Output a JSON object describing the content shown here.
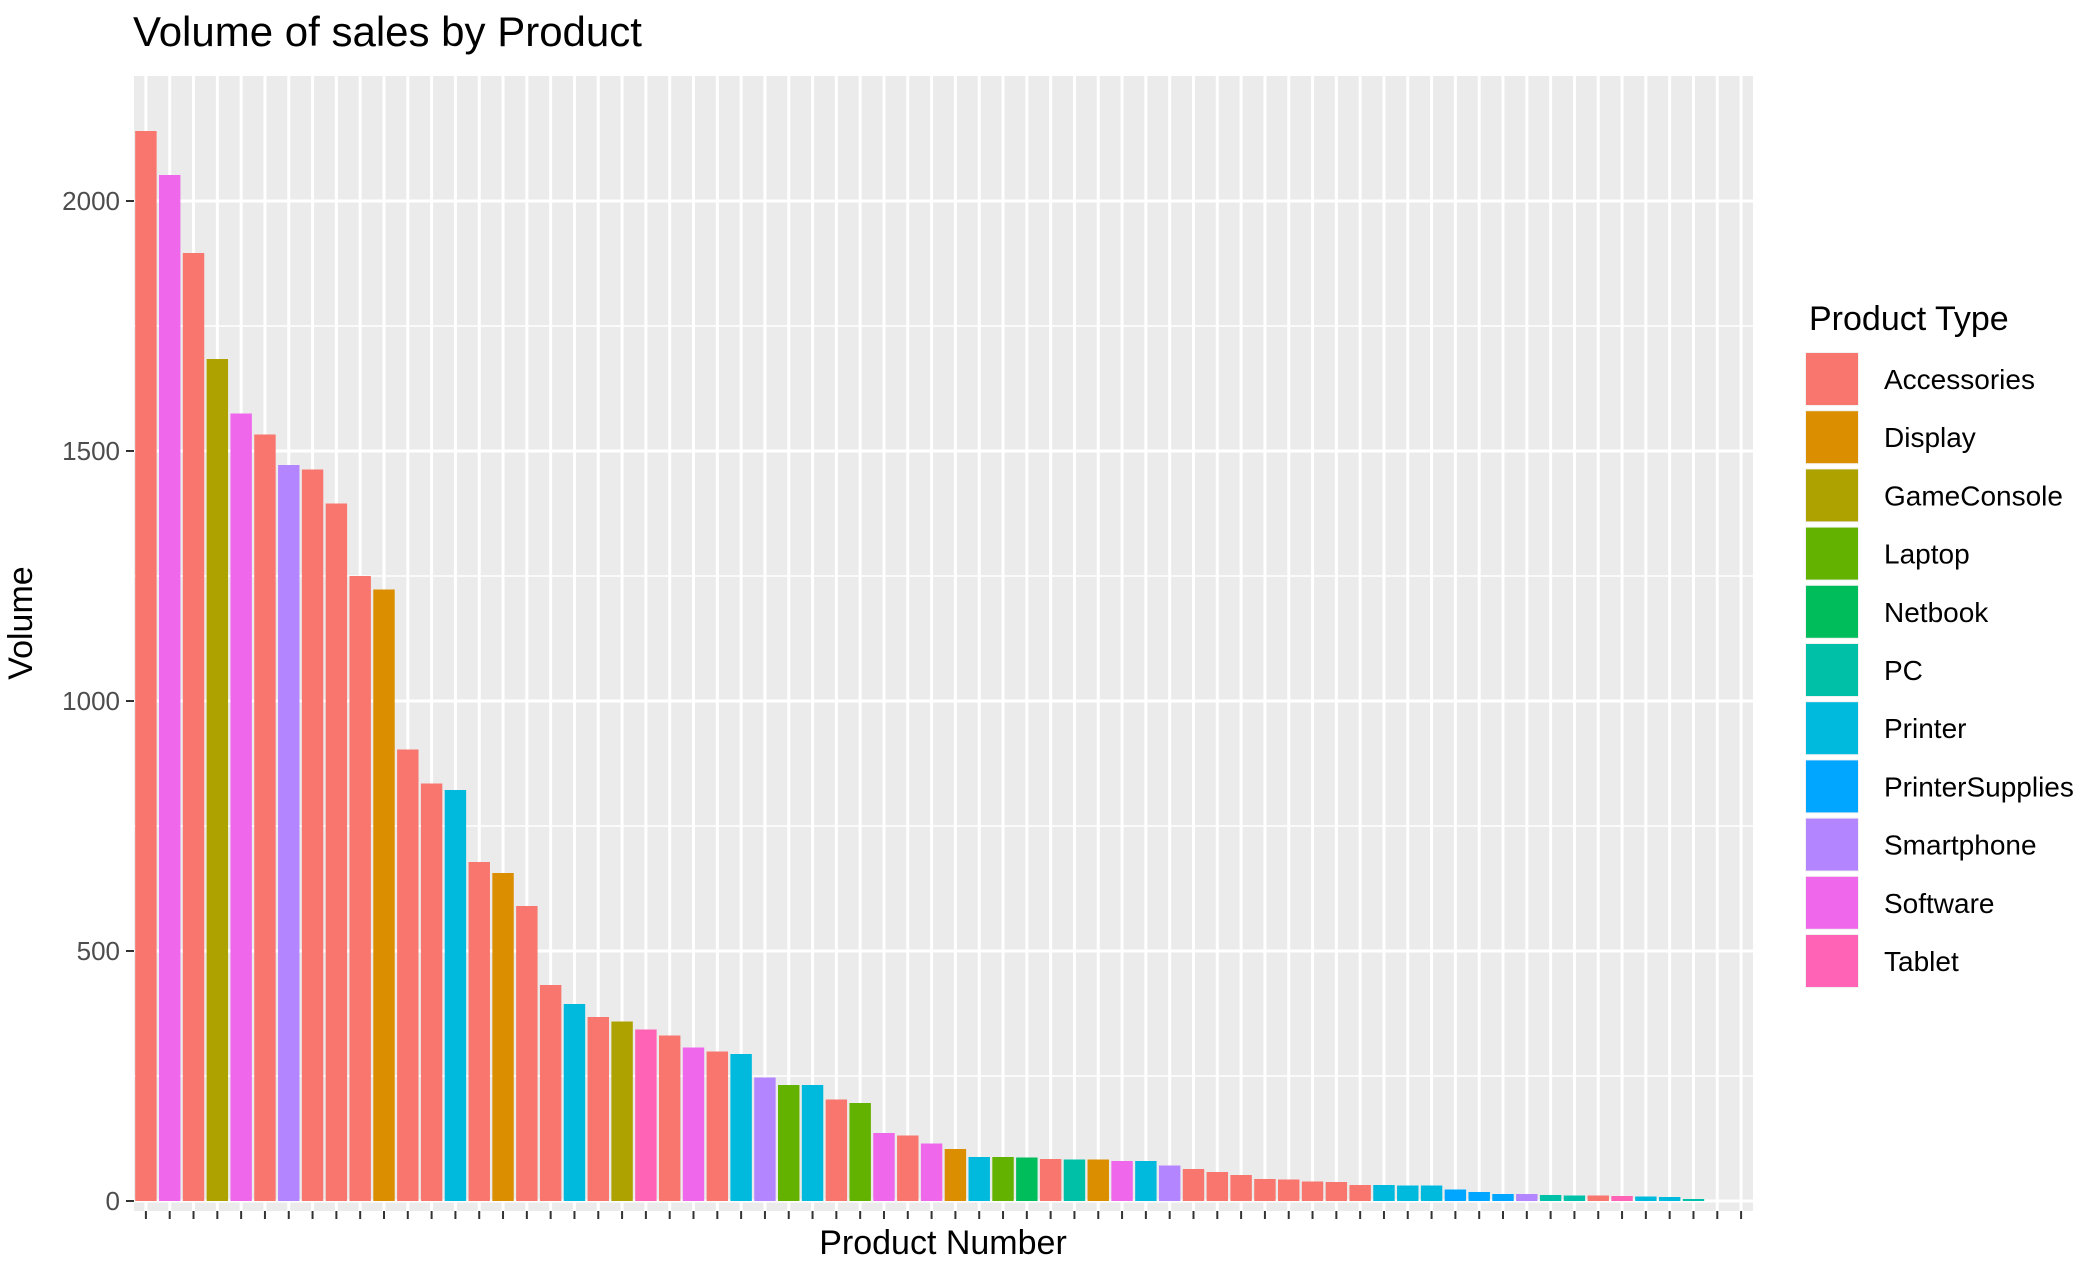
{
  "chart_data": {
    "type": "bar",
    "title": "Volume of sales by Product",
    "xlabel": "Product Number",
    "ylabel": "Volume",
    "ylim": [
      -20,
      2250
    ],
    "yticks": [
      0,
      500,
      1000,
      1500,
      2000
    ],
    "x_tick_labels_shown": false,
    "grid": true,
    "legend": {
      "title": "Product Type",
      "position": "right",
      "entries": [
        {
          "name": "Accessories",
          "color": "#F8766D"
        },
        {
          "name": "Display",
          "color": "#DB8E00"
        },
        {
          "name": "GameConsole",
          "color": "#AEA200"
        },
        {
          "name": "Laptop",
          "color": "#64B200"
        },
        {
          "name": "Netbook",
          "color": "#00BD5C"
        },
        {
          "name": "PC",
          "color": "#00C1A7"
        },
        {
          "name": "Printer",
          "color": "#00BADE"
        },
        {
          "name": "PrinterSupplies",
          "color": "#00A6FF"
        },
        {
          "name": "Smartphone",
          "color": "#B385FF"
        },
        {
          "name": "Software",
          "color": "#EF67EB"
        },
        {
          "name": "Tablet",
          "color": "#FF63B6"
        }
      ]
    },
    "slots": 68,
    "bars": [
      {
        "type": "Accessories",
        "value": 2140
      },
      {
        "type": "Software",
        "value": 2052
      },
      {
        "type": "Accessories",
        "value": 1896
      },
      {
        "type": "GameConsole",
        "value": 1684
      },
      {
        "type": "Software",
        "value": 1575
      },
      {
        "type": "Accessories",
        "value": 1533
      },
      {
        "type": "Smartphone",
        "value": 1472
      },
      {
        "type": "Accessories",
        "value": 1463
      },
      {
        "type": "Accessories",
        "value": 1395
      },
      {
        "type": "Accessories",
        "value": 1250
      },
      {
        "type": "Display",
        "value": 1223
      },
      {
        "type": "Accessories",
        "value": 903
      },
      {
        "type": "Accessories",
        "value": 835
      },
      {
        "type": "Printer",
        "value": 822
      },
      {
        "type": "Accessories",
        "value": 678
      },
      {
        "type": "Display",
        "value": 656
      },
      {
        "type": "Accessories",
        "value": 590
      },
      {
        "type": "Accessories",
        "value": 432
      },
      {
        "type": "Printer",
        "value": 394
      },
      {
        "type": "Accessories",
        "value": 368
      },
      {
        "type": "GameConsole",
        "value": 359
      },
      {
        "type": "Tablet",
        "value": 343
      },
      {
        "type": "Accessories",
        "value": 331
      },
      {
        "type": "Software",
        "value": 307
      },
      {
        "type": "Accessories",
        "value": 299
      },
      {
        "type": "Printer",
        "value": 294
      },
      {
        "type": "Smartphone",
        "value": 247
      },
      {
        "type": "Laptop",
        "value": 232
      },
      {
        "type": "Printer",
        "value": 232
      },
      {
        "type": "Accessories",
        "value": 203
      },
      {
        "type": "Laptop",
        "value": 196
      },
      {
        "type": "Software",
        "value": 136
      },
      {
        "type": "Accessories",
        "value": 131
      },
      {
        "type": "Software",
        "value": 115
      },
      {
        "type": "Display",
        "value": 104
      },
      {
        "type": "Printer",
        "value": 88
      },
      {
        "type": "Laptop",
        "value": 88
      },
      {
        "type": "Netbook",
        "value": 87
      },
      {
        "type": "Accessories",
        "value": 84
      },
      {
        "type": "PC",
        "value": 83
      },
      {
        "type": "Display",
        "value": 83
      },
      {
        "type": "Software",
        "value": 80
      },
      {
        "type": "Printer",
        "value": 80
      },
      {
        "type": "Smartphone",
        "value": 71
      },
      {
        "type": "Accessories",
        "value": 64
      },
      {
        "type": "Accessories",
        "value": 58
      },
      {
        "type": "Accessories",
        "value": 52
      },
      {
        "type": "Accessories",
        "value": 44
      },
      {
        "type": "Accessories",
        "value": 43
      },
      {
        "type": "Accessories",
        "value": 39
      },
      {
        "type": "Accessories",
        "value": 38
      },
      {
        "type": "Accessories",
        "value": 32
      },
      {
        "type": "Printer",
        "value": 32
      },
      {
        "type": "Printer",
        "value": 31
      },
      {
        "type": "Printer",
        "value": 31
      },
      {
        "type": "PrinterSupplies",
        "value": 23
      },
      {
        "type": "PrinterSupplies",
        "value": 18
      },
      {
        "type": "PrinterSupplies",
        "value": 14
      },
      {
        "type": "Smartphone",
        "value": 14
      },
      {
        "type": "PC",
        "value": 12
      },
      {
        "type": "PC",
        "value": 11
      },
      {
        "type": "Accessories",
        "value": 11
      },
      {
        "type": "Tablet",
        "value": 10
      },
      {
        "type": "Printer",
        "value": 9
      },
      {
        "type": "Printer",
        "value": 8
      },
      {
        "type": "PC",
        "value": 4
      }
    ]
  }
}
